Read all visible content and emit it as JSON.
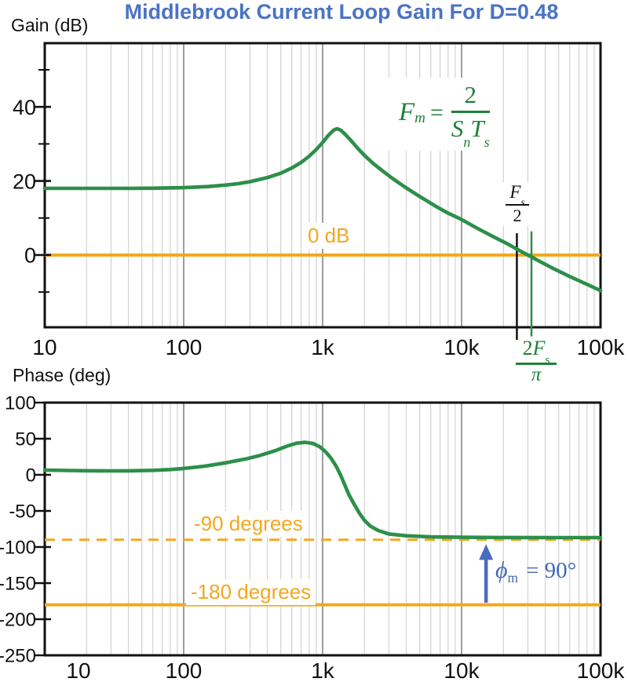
{
  "title": {
    "text": "Middlebrook Current Loop Gain For D=0.48",
    "color": "#4a73c5"
  },
  "colors": {
    "curve_green": "#2d8f49",
    "reference_orange": "#f3a81e",
    "annotation_blue": "#4168b8",
    "formula_green": "#1f8038",
    "frame_black": "#111111",
    "decade_grid": "#6a6a6a",
    "minor_grid": "#d2d2d2"
  },
  "annotations": {
    "zero_db_label": "0 dB",
    "minus90_label": "-90 degrees",
    "minus180_label": "-180 degrees",
    "formula": {
      "f": "F",
      "f_sub": "m",
      "equals": "=",
      "numerator": "2",
      "den_s": "S",
      "den_s_sub": "n",
      "den_t": "T",
      "den_t_sub": "s"
    },
    "fs_over_2": {
      "num": "F",
      "num_sub": "s",
      "den": "2"
    },
    "two_fs_over_pi": {
      "num_lead": "2",
      "num": "F",
      "num_sub": "s",
      "den": "π"
    },
    "phase_margin": {
      "phi": "ϕ",
      "phi_sub": "m",
      "rest": "= 90°"
    }
  },
  "chart_data": [
    {
      "id": "gain",
      "type": "line",
      "axis_title": "Gain (dB)",
      "x_scale": "log",
      "xlim": [
        10,
        100000
      ],
      "ylim": [
        -19.5,
        57.2
      ],
      "grid": "vertical-log",
      "x_ticks": [
        {
          "v": 10,
          "label": "10"
        },
        {
          "v": 100,
          "label": "100"
        },
        {
          "v": 1000,
          "label": "1k"
        },
        {
          "v": 10000,
          "label": "10k"
        },
        {
          "v": 100000,
          "label": "100k"
        }
      ],
      "y_ticks_major": [
        {
          "v": 40,
          "label": "40"
        },
        {
          "v": 20,
          "label": "20"
        },
        {
          "v": 0,
          "label": "0"
        }
      ],
      "y_ticks_minor": [
        50,
        30,
        10,
        -10
      ],
      "series": [
        {
          "name": "current-loop-gain",
          "color": "#2d8f49",
          "width": 4.6,
          "points": [
            [
              10,
              18
            ],
            [
              15,
              18
            ],
            [
              25,
              18
            ],
            [
              40,
              18
            ],
            [
              60,
              18.05
            ],
            [
              100,
              18.2
            ],
            [
              150,
              18.5
            ],
            [
              200,
              18.9
            ],
            [
              250,
              19.3
            ],
            [
              300,
              19.8
            ],
            [
              400,
              20.9
            ],
            [
              500,
              22.1
            ],
            [
              600,
              23.5
            ],
            [
              700,
              25.0
            ],
            [
              800,
              26.7
            ],
            [
              900,
              28.5
            ],
            [
              1000,
              30.4
            ],
            [
              1100,
              32.3
            ],
            [
              1200,
              33.7
            ],
            [
              1270,
              34.1
            ],
            [
              1350,
              33.7
            ],
            [
              1450,
              32.6
            ],
            [
              1600,
              30.9
            ],
            [
              1800,
              28.7
            ],
            [
              2000,
              26.9
            ],
            [
              2300,
              24.8
            ],
            [
              2700,
              22.7
            ],
            [
              3200,
              20.6
            ],
            [
              4000,
              18.1
            ],
            [
              5000,
              15.8
            ],
            [
              6500,
              13.2
            ],
            [
              8000,
              11.3
            ],
            [
              10000,
              9.6
            ],
            [
              13000,
              7.2
            ],
            [
              17000,
              4.9
            ],
            [
              21000,
              3.2
            ],
            [
              25000,
              1.6
            ],
            [
              28000,
              0.6
            ],
            [
              31831,
              -0.5
            ],
            [
              36000,
              -1.6
            ],
            [
              45000,
              -3.5
            ],
            [
              60000,
              -5.8
            ],
            [
              80000,
              -7.9
            ],
            [
              100000,
              -9.6
            ]
          ]
        }
      ],
      "ref_lines": [
        {
          "name": "zero-db-line",
          "type": "h",
          "y": 0,
          "color": "#f3a81e",
          "width": 4
        },
        {
          "name": "fs-over-2-line",
          "type": "v",
          "x": 25000,
          "y_from": -22.9,
          "y_to": 5.9,
          "color": "#111111",
          "width": 2.5
        },
        {
          "name": "two-fs-over-pi-line",
          "type": "v",
          "x": 31831,
          "y_from": -22.0,
          "y_to": 6.4,
          "color": "#2d8f49",
          "width": 2.5
        }
      ]
    },
    {
      "id": "phase",
      "type": "line",
      "axis_title": "Phase (deg)",
      "x_scale": "log",
      "xlim": [
        10,
        100000
      ],
      "ylim": [
        -250,
        100
      ],
      "grid": "vertical-log",
      "x_ticks": [
        {
          "v": 10,
          "label": "10"
        },
        {
          "v": 100,
          "label": "100"
        },
        {
          "v": 1000,
          "label": "1k"
        },
        {
          "v": 10000,
          "label": "10k"
        },
        {
          "v": 100000,
          "label": "100k"
        }
      ],
      "y_ticks_major": [
        {
          "v": 100,
          "label": "100"
        },
        {
          "v": 50,
          "label": "50"
        },
        {
          "v": 0,
          "label": "0"
        },
        {
          "v": -50,
          "label": "-50"
        },
        {
          "v": -100,
          "label": "-100"
        },
        {
          "v": -150,
          "label": "-150"
        },
        {
          "v": -200,
          "label": "-200"
        },
        {
          "v": -250,
          "label": "-250"
        }
      ],
      "y_ticks_minor": [],
      "series": [
        {
          "name": "current-loop-phase",
          "color": "#2d8f49",
          "width": 4.6,
          "points": [
            [
              10,
              6.5
            ],
            [
              15,
              6
            ],
            [
              20,
              5.7
            ],
            [
              30,
              5.4
            ],
            [
              40,
              5.5
            ],
            [
              60,
              6.2
            ],
            [
              80,
              7.3
            ],
            [
              100,
              8.8
            ],
            [
              140,
              11.8
            ],
            [
              200,
              16.5
            ],
            [
              280,
              22
            ],
            [
              350,
              26.5
            ],
            [
              450,
              33
            ],
            [
              550,
              39.5
            ],
            [
              650,
              43.8
            ],
            [
              750,
              45
            ],
            [
              850,
              43.5
            ],
            [
              950,
              39
            ],
            [
              1050,
              32
            ],
            [
              1150,
              23
            ],
            [
              1250,
              12
            ],
            [
              1350,
              -1
            ],
            [
              1450,
              -15
            ],
            [
              1550,
              -28
            ],
            [
              1700,
              -42
            ],
            [
              1850,
              -54
            ],
            [
              2000,
              -63
            ],
            [
              2200,
              -71
            ],
            [
              2500,
              -77
            ],
            [
              3000,
              -82
            ],
            [
              4000,
              -84.5
            ],
            [
              6000,
              -86
            ],
            [
              10000,
              -86.5
            ],
            [
              20000,
              -86.8
            ],
            [
              50000,
              -87
            ],
            [
              100000,
              -87
            ]
          ]
        }
      ],
      "ref_lines": [
        {
          "name": "minus-90-line",
          "type": "h",
          "y": -90,
          "color": "#f3a81e",
          "width": 3,
          "dash": "13 9"
        },
        {
          "name": "minus-180-line",
          "type": "h",
          "y": -180,
          "color": "#f3a81e",
          "width": 4
        }
      ],
      "arrow": {
        "name": "phase-margin-arrow",
        "x": 15000,
        "y_from": -177,
        "y_to": -96,
        "color": "#4a6bbd",
        "width": 4.5
      }
    }
  ]
}
